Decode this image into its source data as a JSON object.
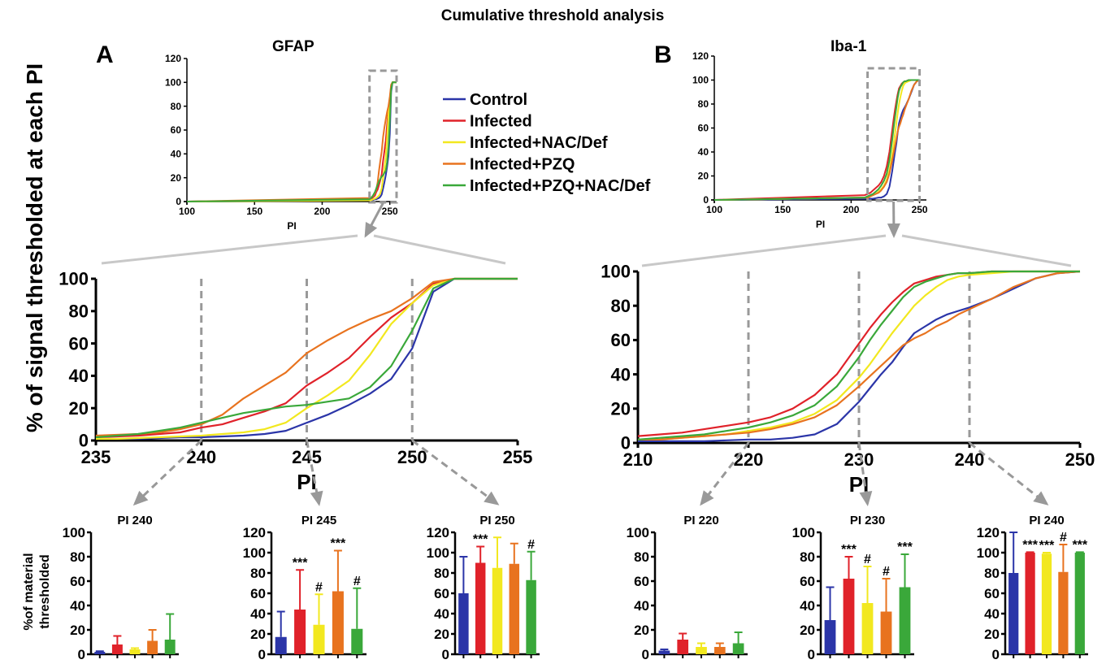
{
  "title": "Cumulative threshold analysis",
  "y_axis_label": "% of signal thresholded at each PI",
  "colors": {
    "Control": "#2b35a8",
    "Infected": "#e0222a",
    "Infected+NAC/Def": "#f2e81f",
    "Infected+PZQ": "#e8731f",
    "Infected+PZQ+NAC/Def": "#3aa83a",
    "dash": "#999999",
    "connector": "#c8c8c8"
  },
  "legend": [
    "Control",
    "Infected",
    "Infected+NAC/Def",
    "Infected+PZQ",
    "Infected+PZQ+NAC/Def"
  ],
  "panels": [
    {
      "letter": "A",
      "marker": "GFAP",
      "inset": {
        "xlabel": "PI",
        "xlim": [
          100,
          255
        ],
        "ylim": [
          0,
          120
        ],
        "xticks": [
          100,
          150,
          200,
          250
        ],
        "yticks": [
          0,
          20,
          40,
          60,
          80,
          100,
          120
        ],
        "box_x": [
          235,
          255
        ]
      },
      "main": {
        "xlabel": "PI",
        "xlim": [
          235,
          255
        ],
        "ylim": [
          0,
          100
        ],
        "xticks": [
          235,
          240,
          245,
          250,
          255
        ],
        "yticks": [
          0,
          20,
          40,
          60,
          80,
          100
        ],
        "vlines": [
          240,
          245,
          250
        ],
        "x": [
          235,
          236,
          237,
          238,
          239,
          240,
          241,
          242,
          243,
          244,
          245,
          246,
          247,
          248,
          249,
          250,
          251,
          252,
          253,
          254,
          255
        ],
        "series": [
          {
            "name": "Control",
            "values": [
              1,
              1,
              1,
              1.5,
              2,
              2,
              2.5,
              3,
              4,
              6,
              11,
              16,
              22,
              29,
              38,
              57,
              92,
              100,
              100,
              100,
              100
            ]
          },
          {
            "name": "Infected",
            "values": [
              2,
              2.5,
              3,
              4,
              5,
              8,
              10,
              14,
              18,
              23,
              34,
              42,
              51,
              64,
              76,
              85,
              97,
              100,
              100,
              100,
              100
            ]
          },
          {
            "name": "Infected+NAC/Def",
            "values": [
              1,
              1,
              1.5,
              2,
              2.5,
              3,
              4,
              5,
              7,
              11,
              20,
              28,
              37,
              53,
              72,
              85,
              96,
              100,
              100,
              100,
              100
            ]
          },
          {
            "name": "Infected+PZQ",
            "values": [
              3,
              3.5,
              4,
              5,
              7,
              10,
              16,
              26,
              34,
              42,
              54,
              62,
              69,
              75,
              80,
              88,
              98,
              100,
              100,
              100,
              100
            ]
          },
          {
            "name": "Infected+PZQ+NAC/Def",
            "values": [
              2,
              3,
              4,
              6,
              8,
              11,
              14,
              17,
              19,
              21,
              22,
              24,
              26,
              33,
              46,
              68,
              94,
              100,
              100,
              100,
              100
            ]
          }
        ]
      },
      "bars": [
        {
          "title": "PI 240",
          "ylim": [
            0,
            100
          ],
          "yticks": [
            0,
            20,
            40,
            60,
            80,
            100
          ],
          "values": [
            2,
            8,
            4,
            11,
            12
          ],
          "errors": [
            0.5,
            7,
            1,
            9,
            21
          ],
          "marks": [
            "",
            "",
            "",
            "",
            ""
          ]
        },
        {
          "title": "PI 245",
          "ylim": [
            0,
            120
          ],
          "yticks": [
            0,
            20,
            40,
            60,
            80,
            100,
            120
          ],
          "values": [
            17,
            44,
            29,
            62,
            25
          ],
          "errors": [
            25,
            39,
            30,
            40,
            40
          ],
          "marks": [
            "",
            "***",
            "#",
            "***",
            "#"
          ]
        },
        {
          "title": "PI 250",
          "ylim": [
            0,
            120
          ],
          "yticks": [
            0,
            20,
            40,
            60,
            80,
            100,
            120
          ],
          "values": [
            60,
            90,
            85,
            89,
            73
          ],
          "errors": [
            36,
            16,
            30,
            20,
            28
          ],
          "marks": [
            "",
            "***",
            "",
            "",
            "#"
          ]
        }
      ]
    },
    {
      "letter": "B",
      "marker": "Iba-1",
      "inset": {
        "xlabel": "PI",
        "xlim": [
          100,
          255
        ],
        "ylim": [
          0,
          120
        ],
        "xticks": [
          100,
          150,
          200,
          250
        ],
        "yticks": [
          0,
          20,
          40,
          60,
          80,
          100,
          120
        ],
        "box_x": [
          212,
          250
        ]
      },
      "main": {
        "xlabel": "PI",
        "xlim": [
          210,
          250
        ],
        "ylim": [
          0,
          100
        ],
        "xticks": [
          210,
          220,
          230,
          240,
          250
        ],
        "yticks": [
          0,
          20,
          40,
          60,
          80,
          100
        ],
        "vlines": [
          220,
          230,
          240
        ],
        "x": [
          210,
          212,
          214,
          216,
          218,
          220,
          222,
          224,
          226,
          228,
          230,
          231,
          232,
          233,
          234,
          235,
          236,
          237,
          238,
          239,
          240,
          242,
          244,
          246,
          248,
          250
        ],
        "series": [
          {
            "name": "Control",
            "values": [
              1,
              1,
              1,
              1,
              1.5,
              2,
              2,
              3,
              5,
              11,
              24,
              32,
              40,
              47,
              56,
              64,
              68,
              72,
              75,
              77,
              79,
              84,
              90,
              96,
              99,
              100
            ]
          },
          {
            "name": "Infected",
            "values": [
              4,
              5,
              6,
              8,
              10,
              12,
              15,
              20,
              28,
              40,
              58,
              67,
              75,
              82,
              88,
              93,
              95,
              97,
              98,
              99,
              99,
              100,
              100,
              100,
              100,
              100
            ]
          },
          {
            "name": "Infected+NAC/Def",
            "values": [
              2,
              2,
              3,
              4,
              5,
              7,
              9,
              12,
              17,
              25,
              38,
              46,
              55,
              64,
              72,
              80,
              86,
              91,
              95,
              97,
              98,
              99,
              100,
              100,
              100,
              100
            ]
          },
          {
            "name": "Infected+PZQ",
            "values": [
              2,
              2,
              3,
              4,
              5,
              6,
              8,
              11,
              15,
              22,
              33,
              39,
              45,
              51,
              57,
              61,
              64,
              68,
              71,
              75,
              78,
              84,
              91,
              96,
              99,
              100
            ]
          },
          {
            "name": "Infected+PZQ+NAC/Def",
            "values": [
              2,
              3,
              4,
              5,
              7,
              9,
              12,
              16,
              22,
              33,
              50,
              60,
              69,
              77,
              85,
              91,
              94,
              96,
              98,
              99,
              99,
              100,
              100,
              100,
              100,
              100
            ]
          }
        ]
      },
      "bars": [
        {
          "title": "PI 220",
          "ylim": [
            0,
            100
          ],
          "yticks": [
            0,
            20,
            40,
            60,
            80,
            100
          ],
          "values": [
            3,
            12,
            6,
            6,
            9
          ],
          "errors": [
            1,
            5,
            3,
            3,
            9
          ],
          "marks": [
            "",
            "",
            "",
            "",
            ""
          ]
        },
        {
          "title": "PI 230",
          "ylim": [
            0,
            100
          ],
          "yticks": [
            0,
            20,
            40,
            60,
            80,
            100
          ],
          "values": [
            28,
            62,
            42,
            35,
            55
          ],
          "errors": [
            27,
            18,
            30,
            27,
            27
          ],
          "marks": [
            "",
            "***",
            "#",
            "#",
            "***"
          ]
        },
        {
          "title": "PI 240",
          "ylim": [
            0,
            120
          ],
          "yticks": [
            0,
            20,
            40,
            60,
            80,
            100,
            120
          ],
          "values": [
            80,
            100,
            99,
            81,
            100
          ],
          "errors": [
            40,
            0.5,
            1,
            27,
            0.5
          ],
          "marks": [
            "",
            "***",
            "***",
            "#",
            "***"
          ]
        }
      ]
    }
  ],
  "bar_ylabel": [
    "%of material",
    "thresholded"
  ]
}
